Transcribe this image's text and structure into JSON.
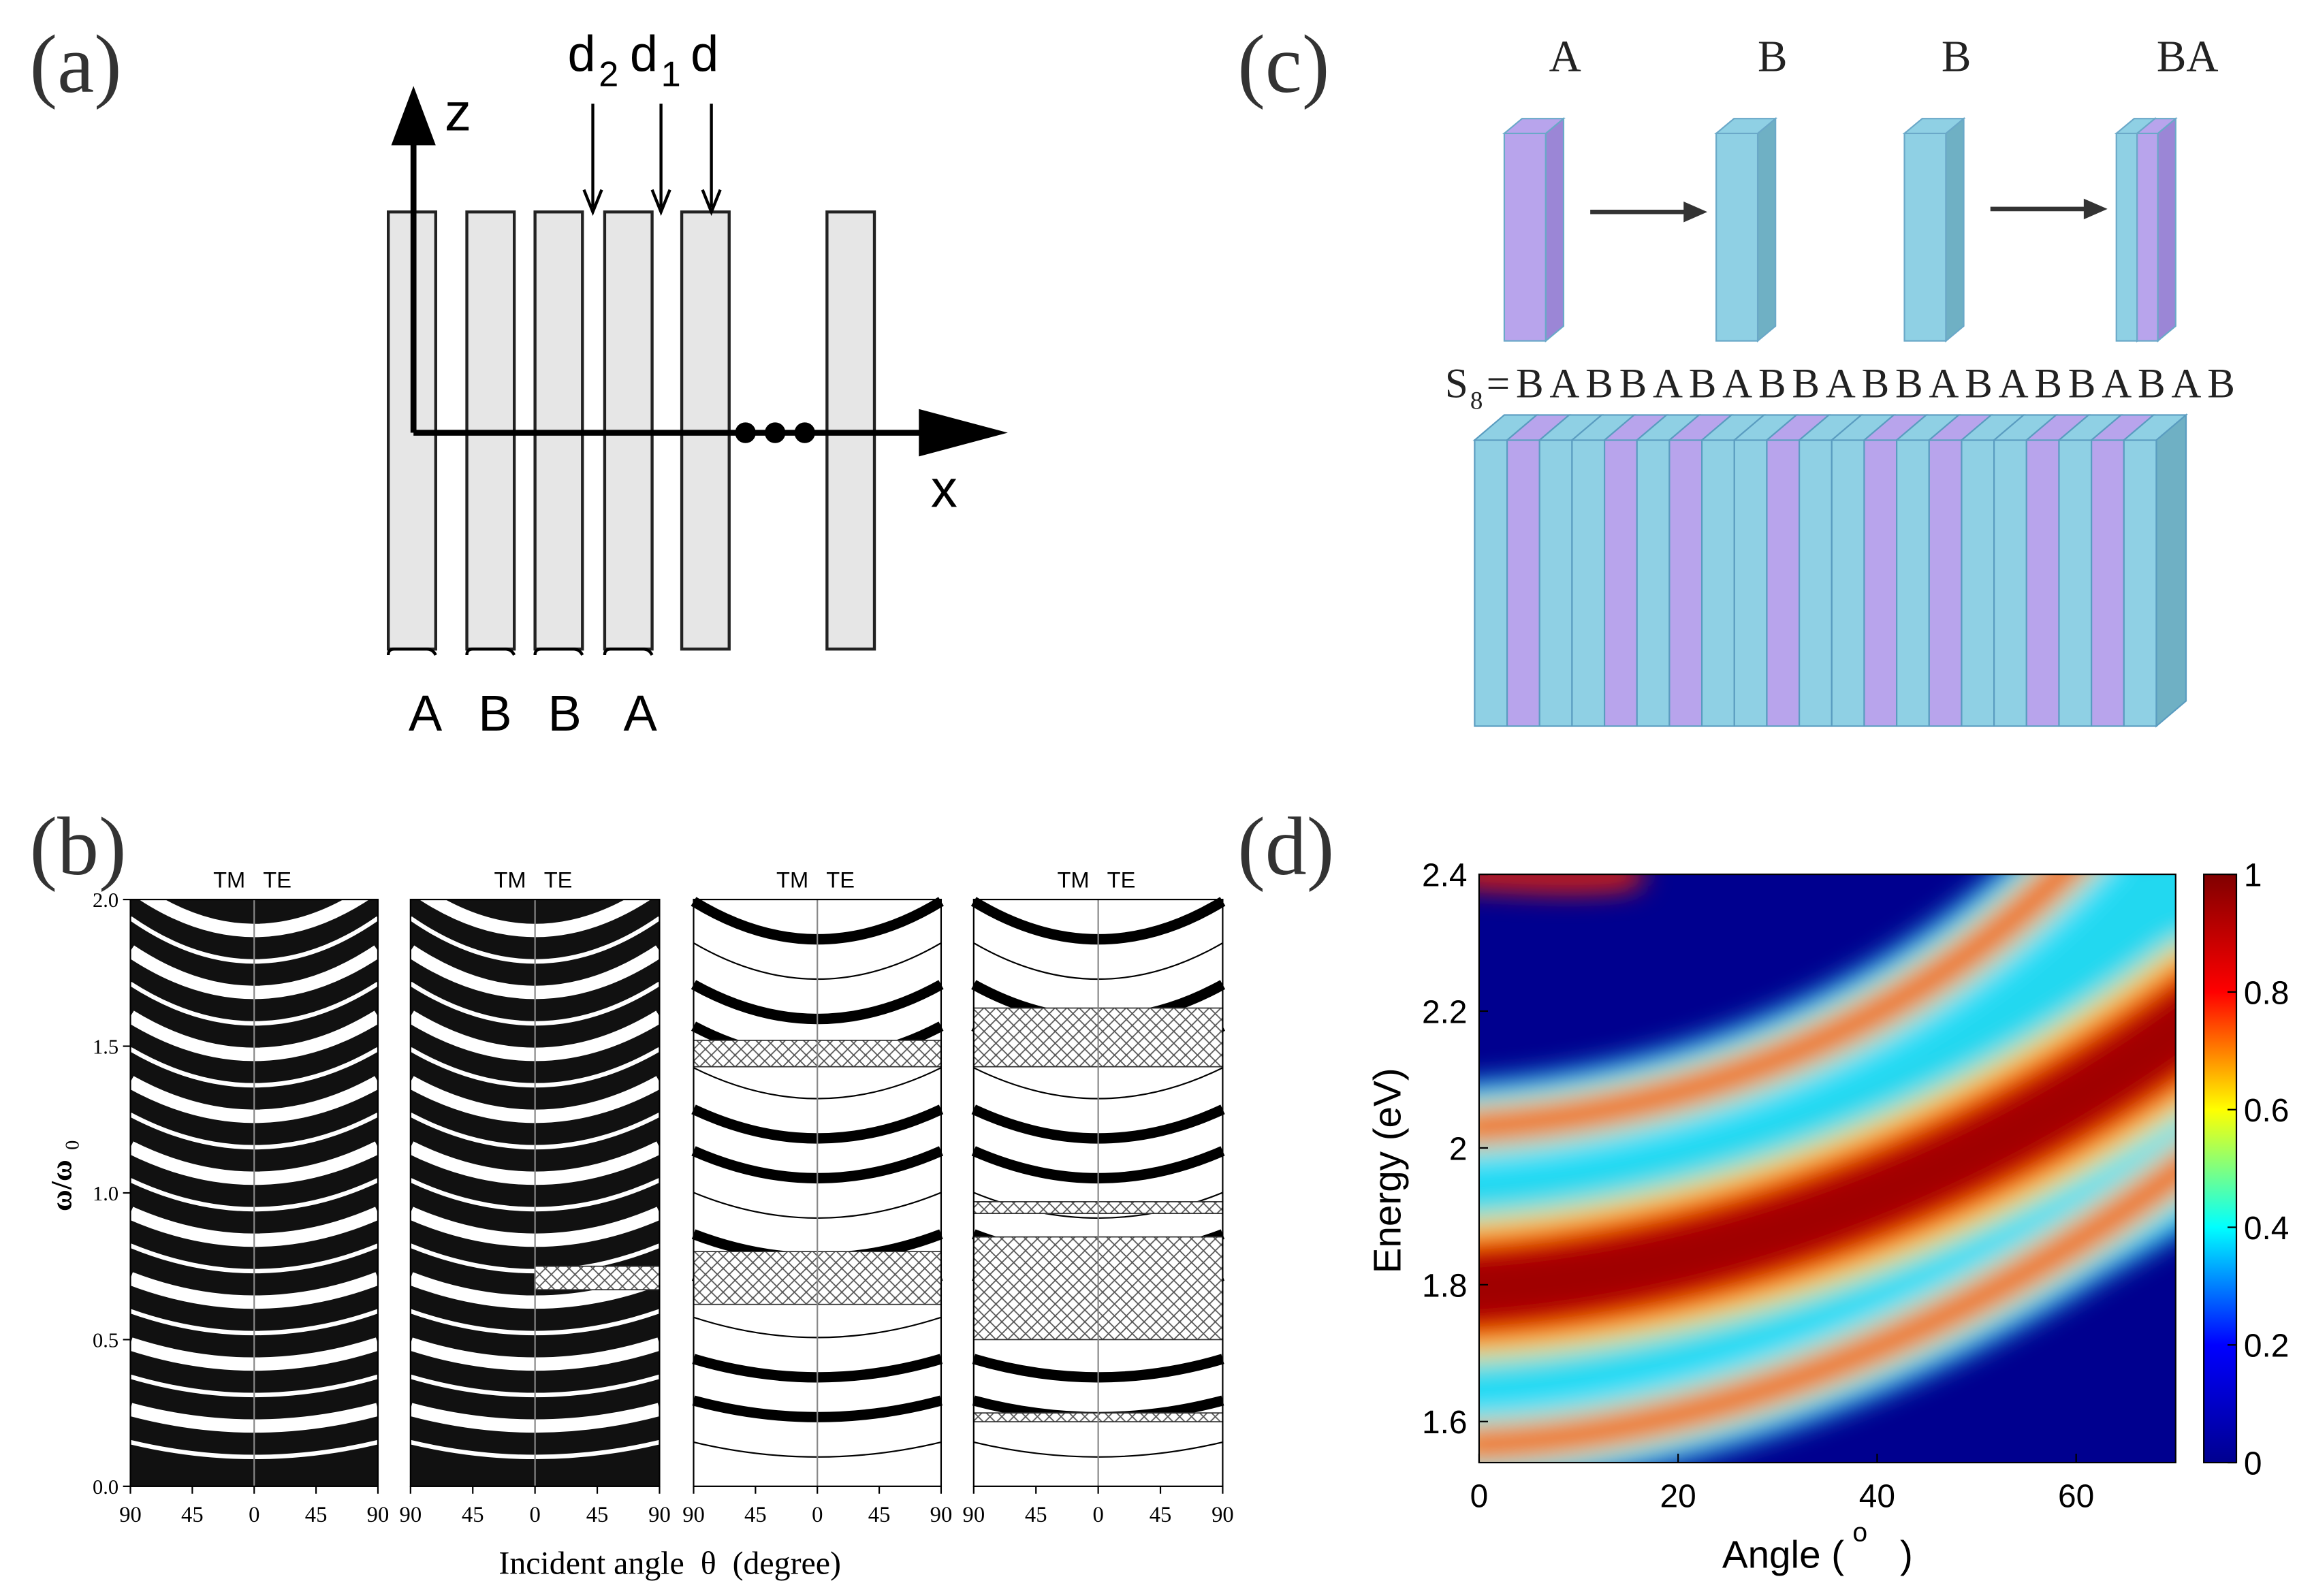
{
  "panel_labels": [
    "(a)",
    "(b)",
    "(c)",
    "(d)"
  ],
  "diagram_a": {
    "arrow_labels": [
      {
        "main": "d",
        "sub": "2"
      },
      {
        "main": "d",
        "sub": "1"
      },
      {
        "main": "d"
      }
    ],
    "z_axis": "z",
    "x_axis": "x",
    "layer_labels": [
      "A",
      "B",
      "B",
      "A"
    ]
  },
  "diagram_c": {
    "top_labels": [
      "A",
      "B",
      "B",
      "BA"
    ],
    "sequence_symbol": "S",
    "sequence_sub": "8",
    "sequence": "=BABBABABBABBABABBABAB"
  },
  "chart_data": [
    {
      "type": "bands",
      "subplots": [
        {
          "left": "TM",
          "right": "TE"
        },
        {
          "left": "TM",
          "right": "TE"
        },
        {
          "left": "TM",
          "right": "TE"
        },
        {
          "left": "TM",
          "right": "TE"
        }
      ],
      "ylabel": "ω/ω",
      "ylabel_sub": "0",
      "xlabel": "Incident angle  θ  (degree)",
      "ylim": [
        0,
        2
      ],
      "yticks": [
        {
          "value": 0,
          "label": "0.0"
        },
        {
          "value": 0.5,
          "label": "0.5"
        },
        {
          "value": 1,
          "label": "1.0"
        },
        {
          "value": 1.5,
          "label": "1.5"
        },
        {
          "value": 2,
          "label": "2.0"
        }
      ],
      "xlim": [
        -90,
        90
      ],
      "xticks": [
        {
          "value": -90,
          "label": "90"
        },
        {
          "value": -45,
          "label": "45"
        },
        0,
        45,
        90
      ]
    },
    {
      "type": "heatmap",
      "xlabel": "Angle (",
      "xlabel_sup": "o",
      "xlabel_end": ")",
      "ylabel": "Energy (eV)",
      "xlim": [
        0,
        70
      ],
      "xticks": [
        0,
        20,
        40,
        60
      ],
      "ylim": [
        1.54,
        2.4
      ],
      "yticks": [
        1.6,
        1.8,
        2,
        2.2,
        2.4
      ],
      "colorbar": {
        "lim": [
          0,
          1
        ],
        "ticks": [
          0,
          0.2,
          0.4,
          0.6,
          0.8,
          1
        ],
        "colors": [
          "#00008f",
          "#0000ff",
          "#00ffff",
          "#ffff00",
          "#ff0000",
          "#800000"
        ]
      }
    }
  ]
}
